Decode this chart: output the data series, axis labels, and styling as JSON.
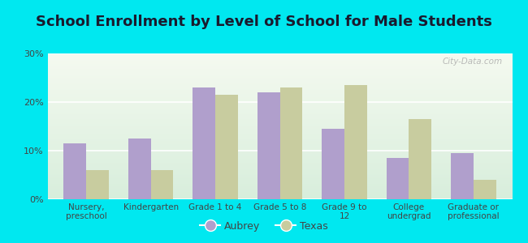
{
  "title": "School Enrollment by Level of School for Male Students",
  "categories": [
    "Nursery,\npreschool",
    "Kindergarten",
    "Grade 1 to 4",
    "Grade 5 to 8",
    "Grade 9 to\n12",
    "College\nundergrad",
    "Graduate or\nprofessional"
  ],
  "aubrey_values": [
    11.5,
    12.5,
    23.0,
    22.0,
    14.5,
    8.5,
    9.5
  ],
  "texas_values": [
    6.0,
    6.0,
    21.5,
    23.0,
    23.5,
    16.5,
    4.0
  ],
  "aubrey_color": "#b09fcc",
  "texas_color": "#c8cc9f",
  "background_outer": "#00e8f0",
  "background_inner_top": "#f5faf0",
  "background_inner_bottom": "#d8eedc",
  "ylim": [
    0,
    30
  ],
  "yticks": [
    0,
    10,
    20,
    30
  ],
  "ytick_labels": [
    "0%",
    "10%",
    "20%",
    "30%"
  ],
  "title_fontsize": 13,
  "legend_labels": [
    "Aubrey",
    "Texas"
  ],
  "bar_width": 0.35,
  "watermark": "City-Data.com"
}
